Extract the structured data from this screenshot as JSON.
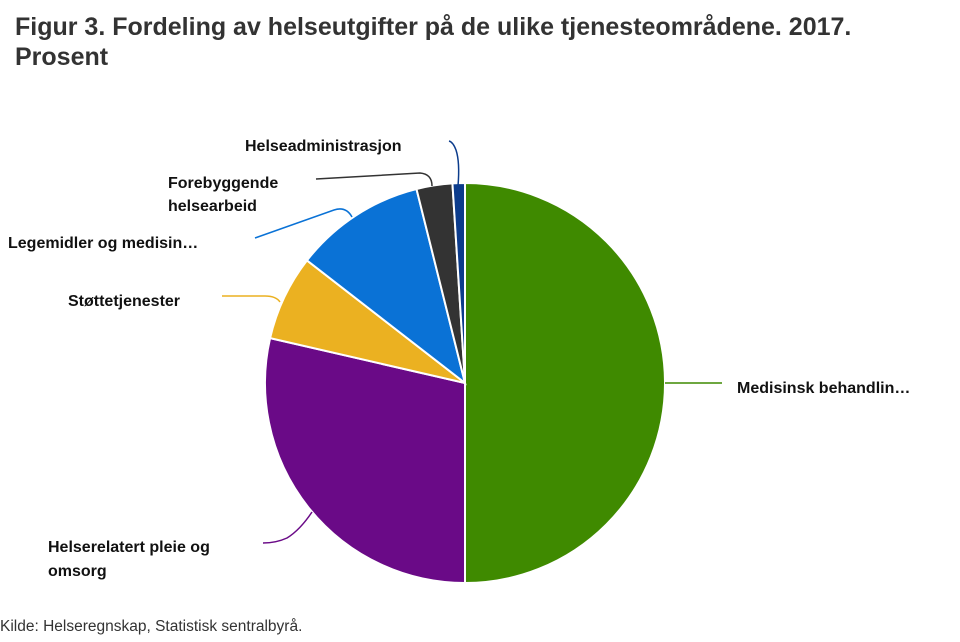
{
  "title_line1": "Figur 3. Fordeling av helseutgifter på de ulike tjenesteområdene. 2017.",
  "title_line2": "Prosent",
  "source": "Kilde: Helseregnskap, Statistisk sentralbyrå.",
  "chart_data": {
    "type": "pie",
    "title": "Figur 3. Fordeling av helseutgifter på de ulike tjenesteområdene. 2017. Prosent",
    "slices": [
      {
        "label": "Medisinsk behandlin…",
        "value": 50.0,
        "color": "#3f8a00"
      },
      {
        "label": "Helserelatert pleie og omsorg",
        "value": 28.6,
        "color": "#6a0a87"
      },
      {
        "label": "Støttetjenester",
        "value": 6.9,
        "color": "#ebb121"
      },
      {
        "label": "Legemidler og medisin…",
        "value": 10.6,
        "color": "#0a72d6"
      },
      {
        "label": "Forebyggende helsearbeid",
        "value": 2.9,
        "color": "#333333"
      },
      {
        "label": "Helseadministrasjon",
        "value": 1.0,
        "color": "#0c3c8c"
      }
    ]
  }
}
